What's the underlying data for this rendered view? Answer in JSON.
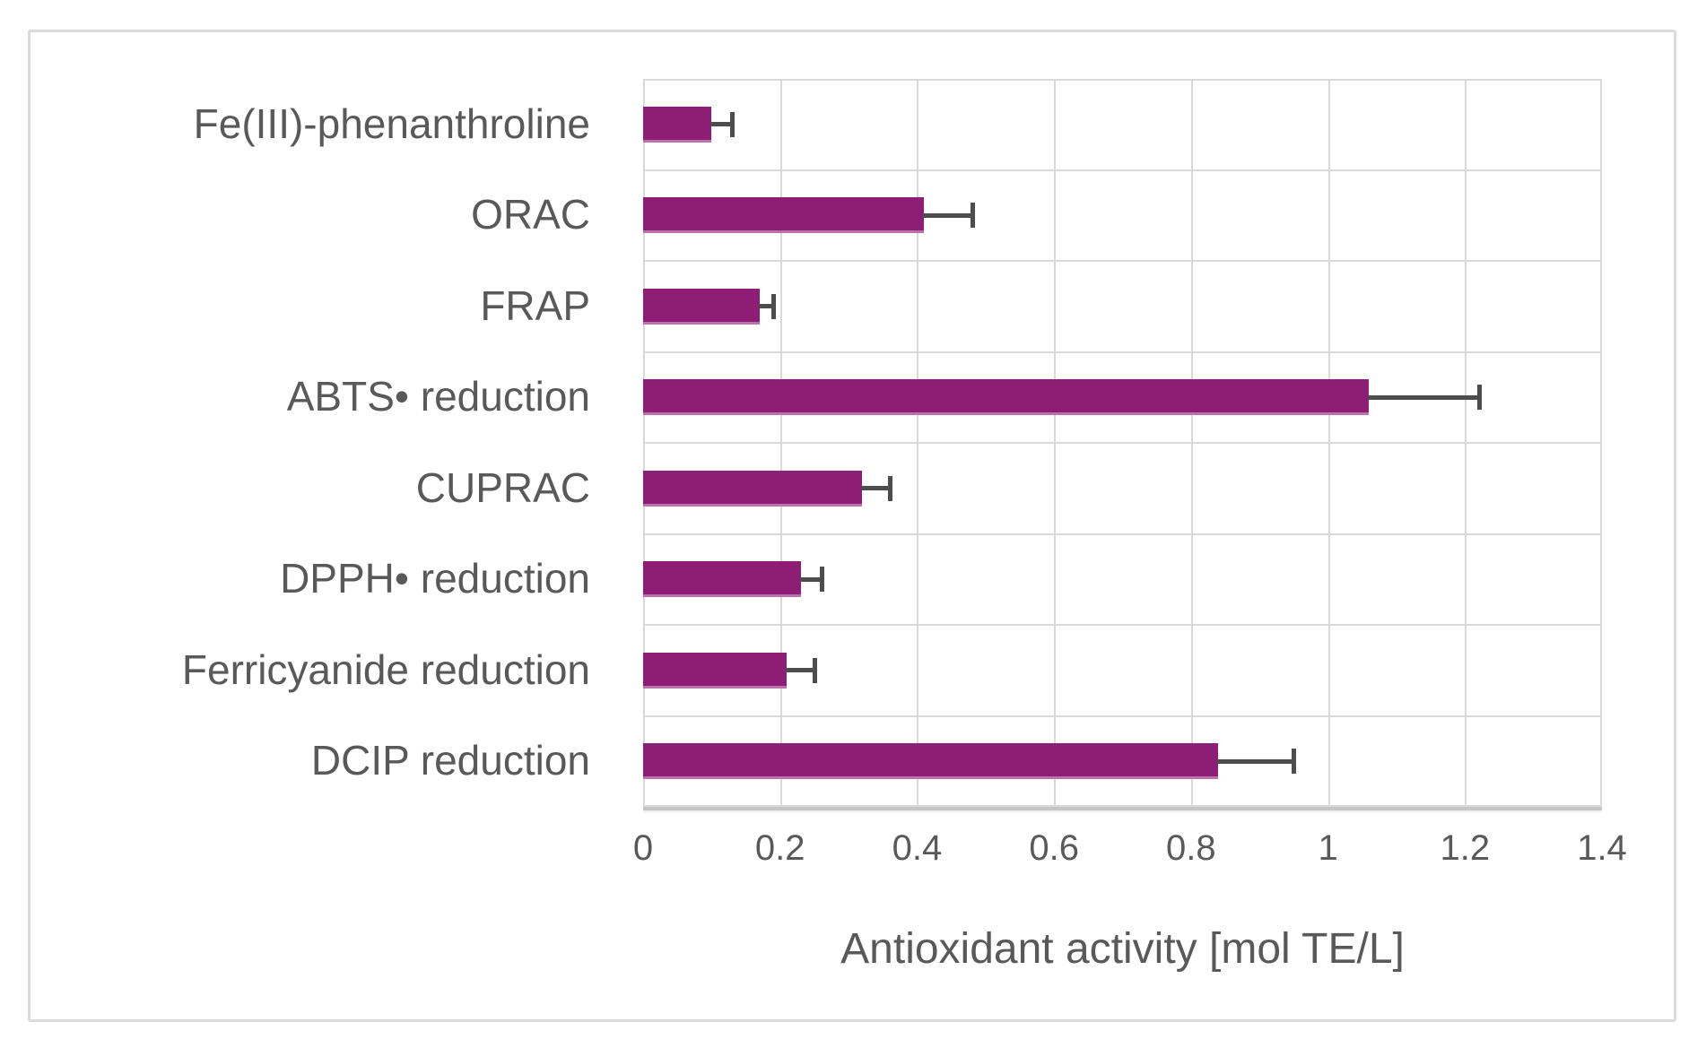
{
  "chart_data": {
    "type": "bar",
    "orientation": "horizontal",
    "title": "",
    "xlabel": "Antioxidant activity [mol TE/L]",
    "ylabel": "",
    "categories": [
      "Fe(III)-phenanthroline",
      "ORAC",
      "FRAP",
      "ABTS• reduction",
      "CUPRAC",
      "DPPH• reduction",
      "Ferricyanide reduction",
      "DCIP reduction"
    ],
    "values": [
      0.1,
      0.41,
      0.17,
      1.06,
      0.32,
      0.23,
      0.21,
      0.84
    ],
    "errors_plus": [
      0.03,
      0.07,
      0.02,
      0.16,
      0.04,
      0.03,
      0.04,
      0.11
    ],
    "xlim": [
      0,
      1.4
    ],
    "xtick_values": [
      0,
      0.2,
      0.4,
      0.6,
      0.8,
      1.0,
      1.2,
      1.4
    ],
    "xtick_labels": [
      "0",
      "0.2",
      "0.4",
      "0.6",
      "0.8",
      "1",
      "1.2",
      "1.4"
    ],
    "grid": true,
    "legend": false,
    "colors": {
      "bar": "#8E1D76",
      "error_bar": "#4d4d4d",
      "gridline": "#d9d9d9",
      "axis_line": "#c6c6c6",
      "text": "#595959",
      "frame_border": "#dbdbdb",
      "background": "#ffffff"
    }
  }
}
